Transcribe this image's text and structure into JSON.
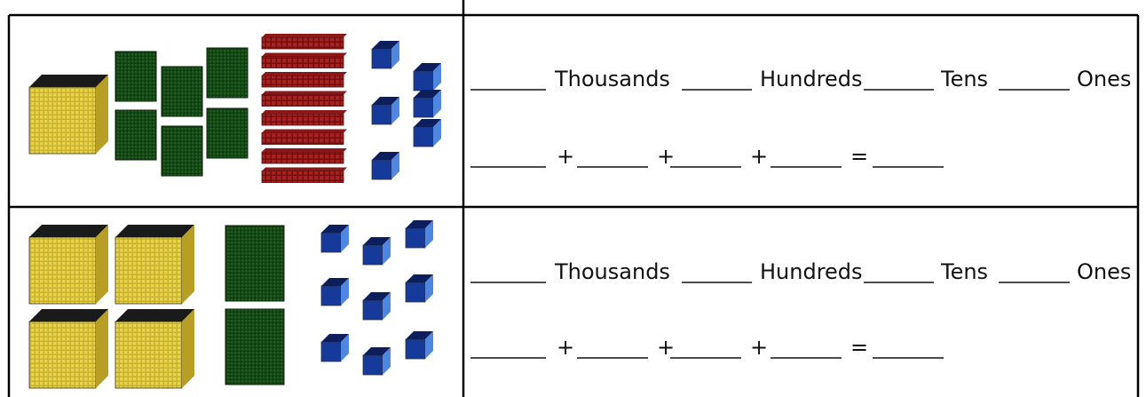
{
  "rows": [
    {
      "place_values": [
        "Thousands",
        "Hundreds",
        "Tens",
        "Ones"
      ],
      "operators": [
        "+",
        "+",
        "+",
        "="
      ]
    },
    {
      "place_values": [
        "Thousands",
        "Hundreds",
        "Tens",
        "Ones"
      ],
      "operators": [
        "+",
        "+",
        "+",
        "="
      ]
    }
  ]
}
